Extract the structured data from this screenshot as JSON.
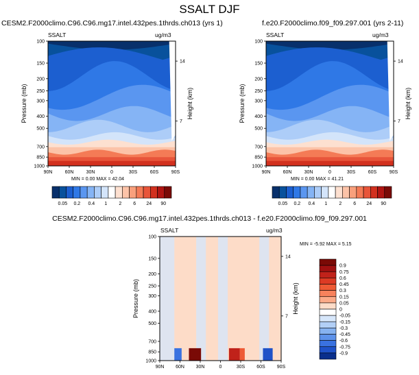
{
  "page": {
    "title": "SSALT DJF"
  },
  "chart_data": [
    {
      "type": "heatmap",
      "title": "CESM2.F2000climo.C96.C96.mg17.intel.432pes.1thrds.ch013 (yrs 1)",
      "variable": "SSALT",
      "units": "ug/m3",
      "ylabel": "Pressure (mb)",
      "ylabel_right": "Height (km)",
      "x_ticks": [
        "90N",
        "60N",
        "30N",
        "0",
        "30S",
        "60S",
        "90S"
      ],
      "y_ticks": [
        "100",
        "150",
        "200",
        "250",
        "300",
        "400",
        "500",
        "700",
        "850",
        "1000"
      ],
      "y_ticks_right": [
        "14",
        "7"
      ],
      "min_label": "MIN =  0.00  MAX =  42.04",
      "min": 0.0,
      "max": 42.04,
      "colorbar": {
        "labels": [
          "0.05",
          "0.2",
          "0.4",
          "1",
          "2",
          "6",
          "24",
          "90"
        ],
        "colors": [
          "#08306b",
          "#08519c",
          "#1c5fd0",
          "#2f78e6",
          "#5a96f0",
          "#85b4f5",
          "#adcdf8",
          "#d3e4fa",
          "#ffffff",
          "#fde0d0",
          "#fcc3a8",
          "#f9a07c",
          "#f47b56",
          "#e8553a",
          "#d2301e",
          "#b01512",
          "#7a0a06"
        ]
      }
    },
    {
      "type": "heatmap",
      "title": "f.e20.F2000climo.f09_f09.297.001 (yrs 2-11)",
      "variable": "SSALT",
      "units": "ug/m3",
      "ylabel": "Pressure (mb)",
      "ylabel_right": "Height (km)",
      "x_ticks": [
        "90N",
        "60N",
        "30N",
        "0",
        "30S",
        "60S",
        "90S"
      ],
      "y_ticks": [
        "100",
        "150",
        "200",
        "250",
        "300",
        "400",
        "500",
        "700",
        "850",
        "1000"
      ],
      "y_ticks_right": [
        "14",
        "7"
      ],
      "min_label": "MIN =  0.00  MAX =  41.21",
      "min": 0.0,
      "max": 41.21,
      "colorbar": {
        "labels": [
          "0.05",
          "0.2",
          "0.4",
          "1",
          "2",
          "6",
          "24",
          "90"
        ],
        "colors": [
          "#08306b",
          "#08519c",
          "#1c5fd0",
          "#2f78e6",
          "#5a96f0",
          "#85b4f5",
          "#adcdf8",
          "#d3e4fa",
          "#ffffff",
          "#fde0d0",
          "#fcc3a8",
          "#f9a07c",
          "#f47b56",
          "#e8553a",
          "#d2301e",
          "#b01512",
          "#7a0a06"
        ]
      }
    },
    {
      "type": "heatmap",
      "title": "CESM2.F2000climo.C96.C96.mg17.intel.432pes.1thrds.ch013 - f.e20.F2000climo.f09_f09.297.001",
      "variable": "SSALT",
      "units": "ug/m3",
      "ylabel": "Pressure (mb)",
      "ylabel_right": "Height (km)",
      "x_ticks": [
        "90N",
        "60N",
        "30N",
        "0",
        "30S",
        "60S",
        "90S"
      ],
      "y_ticks": [
        "100",
        "150",
        "200",
        "250",
        "300",
        "400",
        "500",
        "700",
        "850",
        "1000"
      ],
      "y_ticks_right": [
        "14",
        "7"
      ],
      "min_label": "MIN = -5.92  MAX =  5.15",
      "min": -5.92,
      "max": 5.15,
      "colorbar": {
        "labels": [
          "0.9",
          "0.75",
          "0.6",
          "0.45",
          "0.3",
          "0.15",
          "0.05",
          "0",
          "-0.05",
          "-0.15",
          "-0.3",
          "-0.45",
          "-0.6",
          "-0.75",
          "-0.9"
        ],
        "colors": [
          "#7a0a06",
          "#a01010",
          "#c0221a",
          "#dc3a24",
          "#ee5a35",
          "#f8825c",
          "#fcaa88",
          "#fddcc8",
          "#ffffff",
          "#d6e6fa",
          "#b2cff6",
          "#86b2f0",
          "#5d92ea",
          "#3a72e0",
          "#1f52c8",
          "#0a2f8c"
        ]
      }
    }
  ]
}
